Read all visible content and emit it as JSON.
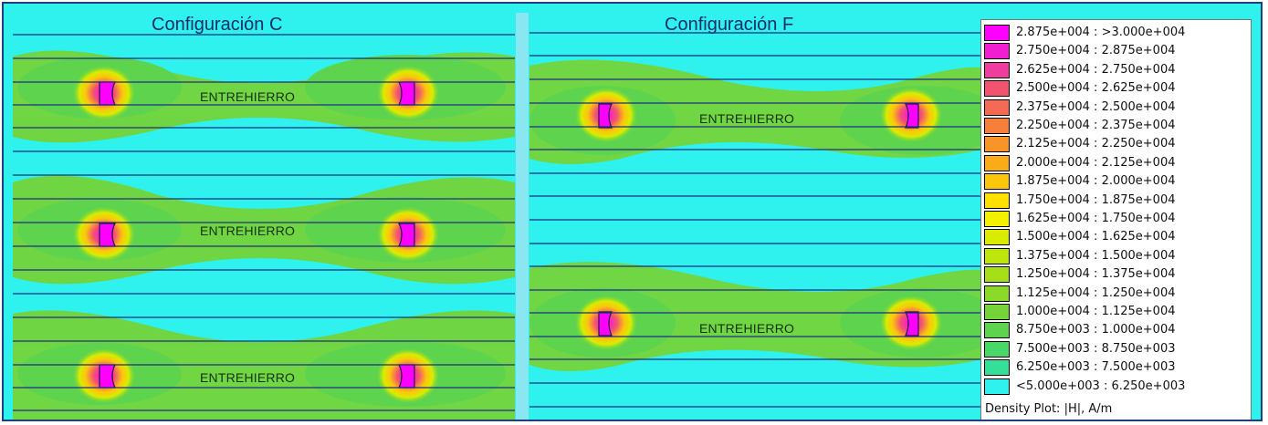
{
  "panels": [
    {
      "title": "Configuración C",
      "gap_labels": [
        "ENTREHIERRO",
        "ENTREHIERRO",
        "ENTREHIERRO"
      ]
    },
    {
      "title": "Configuración F",
      "gap_labels": [
        "ENTREHIERRO",
        "ENTREHIERRO"
      ]
    }
  ],
  "legend": {
    "caption": "Density Plot: |H|, A/m",
    "entries": [
      {
        "label": "2.875e+004 : >3.000e+004",
        "color": "#ff00ff"
      },
      {
        "label": "2.750e+004 : 2.875e+004",
        "color": "#f21fd2"
      },
      {
        "label": "2.625e+004 : 2.750e+004",
        "color": "#f03c9c"
      },
      {
        "label": "2.500e+004 : 2.625e+004",
        "color": "#f25470"
      },
      {
        "label": "2.375e+004 : 2.500e+004",
        "color": "#f46a55"
      },
      {
        "label": "2.250e+004 : 2.375e+004",
        "color": "#f67f3c"
      },
      {
        "label": "2.125e+004 : 2.250e+004",
        "color": "#f89528"
      },
      {
        "label": "2.000e+004 : 2.125e+004",
        "color": "#faac18"
      },
      {
        "label": "1.875e+004 : 2.000e+004",
        "color": "#fcc60c"
      },
      {
        "label": "1.750e+004 : 1.875e+004",
        "color": "#ffe000"
      },
      {
        "label": "1.625e+004 : 1.750e+004",
        "color": "#f3f000"
      },
      {
        "label": "1.500e+004 : 1.625e+004",
        "color": "#d9ec00"
      },
      {
        "label": "1.375e+004 : 1.500e+004",
        "color": "#bfe60a"
      },
      {
        "label": "1.250e+004 : 1.375e+004",
        "color": "#a4df18"
      },
      {
        "label": "1.125e+004 : 1.250e+004",
        "color": "#8bd928"
      },
      {
        "label": "1.000e+004 : 1.125e+004",
        "color": "#74d43a"
      },
      {
        "label": "8.750e+003 : 1.000e+004",
        "color": "#5ed44e"
      },
      {
        "label": "7.500e+003 : 8.750e+003",
        "color": "#48d868"
      },
      {
        "label": "6.250e+003 : 7.500e+003",
        "color": "#34e098"
      },
      {
        "label": "<5.000e+003 : 6.250e+003",
        "color": "#2ff2ee"
      }
    ]
  }
}
